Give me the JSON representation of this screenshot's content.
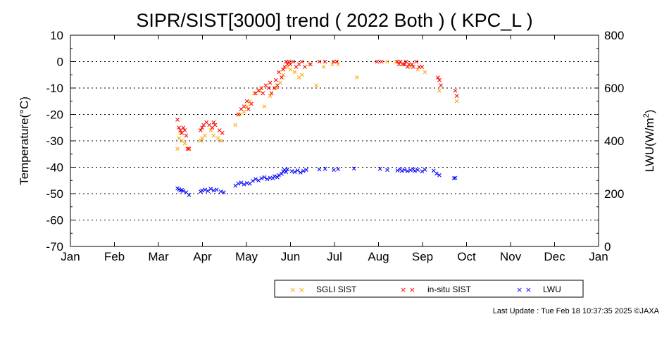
{
  "chart_data": {
    "type": "scatter",
    "title": "SIPR/SIST[3000] trend ( 2022 Both ) ( KPC_L )",
    "ylabel": "Temperature(°C)",
    "y2label_main": "LWU(W/m",
    "y2label_sup": "2",
    "y2label_end": ")",
    "ylim": [
      -70,
      10
    ],
    "y2lim": [
      0,
      800
    ],
    "yticks": [
      "10",
      "0",
      "-10",
      "-20",
      "-30",
      "-40",
      "-50",
      "-60",
      "-70"
    ],
    "y2ticks": [
      "800",
      "600",
      "400",
      "200",
      "0"
    ],
    "xticks": [
      "Jan",
      "Feb",
      "Mar",
      "Apr",
      "May",
      "Jun",
      "Jul",
      "Aug",
      "Sep",
      "Oct",
      "Nov",
      "Dec",
      "Jan"
    ],
    "grid": "dotted horizontal",
    "legend_placement": "bottom-center",
    "series": [
      {
        "name": "SGLI SIST",
        "color": "#ffa500",
        "axis": "left",
        "points": [
          [
            "2022-03-16",
            -33
          ],
          [
            "2022-03-17",
            -29
          ],
          [
            "2022-03-18",
            -27
          ],
          [
            "2022-03-19",
            -30
          ],
          [
            "2022-03-21",
            -31
          ],
          [
            "2022-03-23",
            -33
          ],
          [
            "2022-04-01",
            -30
          ],
          [
            "2022-04-02",
            -29
          ],
          [
            "2022-04-04",
            -28
          ],
          [
            "2022-04-08",
            -26
          ],
          [
            "2022-04-10",
            -28
          ],
          [
            "2022-04-13",
            -29
          ],
          [
            "2022-04-15",
            -30
          ],
          [
            "2022-04-25",
            -24
          ],
          [
            "2022-04-28",
            -20
          ],
          [
            "2022-05-01",
            -19
          ],
          [
            "2022-05-03",
            -17
          ],
          [
            "2022-05-05",
            -15
          ],
          [
            "2022-05-08",
            -12
          ],
          [
            "2022-05-12",
            -11
          ],
          [
            "2022-05-15",
            -17
          ],
          [
            "2022-05-19",
            -13
          ],
          [
            "2022-05-23",
            -10
          ],
          [
            "2022-05-26",
            -8
          ],
          [
            "2022-05-28",
            -5
          ],
          [
            "2022-05-31",
            -2
          ],
          [
            "2022-06-02",
            -3
          ],
          [
            "2022-06-05",
            -4
          ],
          [
            "2022-06-08",
            -6
          ],
          [
            "2022-06-10",
            -5
          ],
          [
            "2022-06-15",
            -1
          ],
          [
            "2022-06-20",
            -9
          ],
          [
            "2022-06-25",
            -2
          ],
          [
            "2022-07-01",
            -1
          ],
          [
            "2022-07-05",
            -1
          ],
          [
            "2022-07-18",
            -6
          ],
          [
            "2022-08-08",
            0
          ],
          [
            "2022-08-14",
            0
          ],
          [
            "2022-08-18",
            -1
          ],
          [
            "2022-08-24",
            -2
          ],
          [
            "2022-08-29",
            -3
          ],
          [
            "2022-09-03",
            -4
          ],
          [
            "2022-09-13",
            -11
          ],
          [
            "2022-09-25",
            -15
          ]
        ]
      },
      {
        "name": "in-situ SIST",
        "color": "#ff0000",
        "axis": "left",
        "points": [
          [
            "2022-03-16",
            -22
          ],
          [
            "2022-03-17",
            -25
          ],
          [
            "2022-03-18",
            -26
          ],
          [
            "2022-03-19",
            -27
          ],
          [
            "2022-03-20",
            -25
          ],
          [
            "2022-03-21",
            -26
          ],
          [
            "2022-03-22",
            -28
          ],
          [
            "2022-03-23",
            -33
          ],
          [
            "2022-03-24",
            -33
          ],
          [
            "2022-04-01",
            -26
          ],
          [
            "2022-04-02",
            -25
          ],
          [
            "2022-04-03",
            -24
          ],
          [
            "2022-04-05",
            -23
          ],
          [
            "2022-04-07",
            -24
          ],
          [
            "2022-04-09",
            -25
          ],
          [
            "2022-04-10",
            -23
          ],
          [
            "2022-04-11",
            -24
          ],
          [
            "2022-04-14",
            -26
          ],
          [
            "2022-04-16",
            -27
          ],
          [
            "2022-04-27",
            -20
          ],
          [
            "2022-04-29",
            -18
          ],
          [
            "2022-05-01",
            -17
          ],
          [
            "2022-05-03",
            -15
          ],
          [
            "2022-05-04",
            -18
          ],
          [
            "2022-05-06",
            -16
          ],
          [
            "2022-05-09",
            -12
          ],
          [
            "2022-05-11",
            -11
          ],
          [
            "2022-05-13",
            -10
          ],
          [
            "2022-05-14",
            -12
          ],
          [
            "2022-05-16",
            -9
          ],
          [
            "2022-05-18",
            -10
          ],
          [
            "2022-05-19",
            -8
          ],
          [
            "2022-05-20",
            -12
          ],
          [
            "2022-05-22",
            -10
          ],
          [
            "2022-05-23",
            -7
          ],
          [
            "2022-05-24",
            -9
          ],
          [
            "2022-05-25",
            -4
          ],
          [
            "2022-05-27",
            -6
          ],
          [
            "2022-05-28",
            -3
          ],
          [
            "2022-05-29",
            -2
          ],
          [
            "2022-05-30",
            0
          ],
          [
            "2022-05-31",
            -1
          ],
          [
            "2022-06-01",
            0
          ],
          [
            "2022-06-02",
            -1
          ],
          [
            "2022-06-04",
            0
          ],
          [
            "2022-06-06",
            -2
          ],
          [
            "2022-06-08",
            -1
          ],
          [
            "2022-06-10",
            0
          ],
          [
            "2022-06-12",
            -2
          ],
          [
            "2022-06-16",
            -1
          ],
          [
            "2022-06-22",
            0
          ],
          [
            "2022-06-26",
            0
          ],
          [
            "2022-07-02",
            0
          ],
          [
            "2022-07-04",
            0
          ],
          [
            "2022-08-01",
            0
          ],
          [
            "2022-08-04",
            0
          ],
          [
            "2022-08-15",
            0
          ],
          [
            "2022-08-16",
            -1
          ],
          [
            "2022-08-17",
            0
          ],
          [
            "2022-08-19",
            -1
          ],
          [
            "2022-08-20",
            -1
          ],
          [
            "2022-08-21",
            0
          ],
          [
            "2022-08-22",
            -2
          ],
          [
            "2022-08-23",
            -1
          ],
          [
            "2022-08-25",
            -1
          ],
          [
            "2022-08-26",
            -2
          ],
          [
            "2022-08-28",
            0
          ],
          [
            "2022-08-30",
            -2
          ],
          [
            "2022-09-01",
            -2
          ],
          [
            "2022-09-12",
            -6
          ],
          [
            "2022-09-13",
            -7
          ],
          [
            "2022-09-14",
            -9
          ],
          [
            "2022-09-24",
            -11
          ],
          [
            "2022-09-25",
            -13
          ]
        ]
      },
      {
        "name": "LWU",
        "color": "#0000ff",
        "axis": "right",
        "points": [
          [
            "2022-03-16",
            220
          ],
          [
            "2022-03-17",
            216
          ],
          [
            "2022-03-18",
            212
          ],
          [
            "2022-03-19",
            214
          ],
          [
            "2022-03-20",
            210
          ],
          [
            "2022-03-22",
            205
          ],
          [
            "2022-03-24",
            195
          ],
          [
            "2022-04-01",
            208
          ],
          [
            "2022-04-02",
            212
          ],
          [
            "2022-04-04",
            215
          ],
          [
            "2022-04-06",
            210
          ],
          [
            "2022-04-08",
            218
          ],
          [
            "2022-04-10",
            212
          ],
          [
            "2022-04-12",
            215
          ],
          [
            "2022-04-15",
            208
          ],
          [
            "2022-04-17",
            205
          ],
          [
            "2022-04-25",
            230
          ],
          [
            "2022-04-27",
            238
          ],
          [
            "2022-04-29",
            242
          ],
          [
            "2022-05-01",
            235
          ],
          [
            "2022-05-03",
            240
          ],
          [
            "2022-05-05",
            238
          ],
          [
            "2022-05-07",
            248
          ],
          [
            "2022-05-09",
            255
          ],
          [
            "2022-05-11",
            250
          ],
          [
            "2022-05-13",
            258
          ],
          [
            "2022-05-15",
            262
          ],
          [
            "2022-05-17",
            255
          ],
          [
            "2022-05-19",
            260
          ],
          [
            "2022-05-21",
            258
          ],
          [
            "2022-05-22",
            266
          ],
          [
            "2022-05-24",
            262
          ],
          [
            "2022-05-25",
            270
          ],
          [
            "2022-05-27",
            275
          ],
          [
            "2022-05-28",
            285
          ],
          [
            "2022-05-29",
            290
          ],
          [
            "2022-05-30",
            282
          ],
          [
            "2022-05-31",
            292
          ],
          [
            "2022-06-03",
            285
          ],
          [
            "2022-06-05",
            282
          ],
          [
            "2022-06-07",
            288
          ],
          [
            "2022-06-09",
            280
          ],
          [
            "2022-06-11",
            286
          ],
          [
            "2022-06-13",
            290
          ],
          [
            "2022-06-22",
            292
          ],
          [
            "2022-06-26",
            294
          ],
          [
            "2022-07-02",
            290
          ],
          [
            "2022-07-05",
            293
          ],
          [
            "2022-07-16",
            295
          ],
          [
            "2022-08-03",
            294
          ],
          [
            "2022-08-08",
            290
          ],
          [
            "2022-08-15",
            288
          ],
          [
            "2022-08-17",
            292
          ],
          [
            "2022-08-18",
            286
          ],
          [
            "2022-08-20",
            290
          ],
          [
            "2022-08-22",
            285
          ],
          [
            "2022-08-24",
            289
          ],
          [
            "2022-08-26",
            292
          ],
          [
            "2022-08-27",
            286
          ],
          [
            "2022-08-29",
            290
          ],
          [
            "2022-09-01",
            284
          ],
          [
            "2022-09-03",
            291
          ],
          [
            "2022-09-09",
            287
          ],
          [
            "2022-09-11",
            276
          ],
          [
            "2022-09-13",
            270
          ],
          [
            "2022-09-23",
            258
          ],
          [
            "2022-09-24",
            260
          ]
        ]
      }
    ]
  },
  "footer": {
    "last_update": "Last Update : Tue Feb 18 10:37:35 2025  ©JAXA"
  }
}
